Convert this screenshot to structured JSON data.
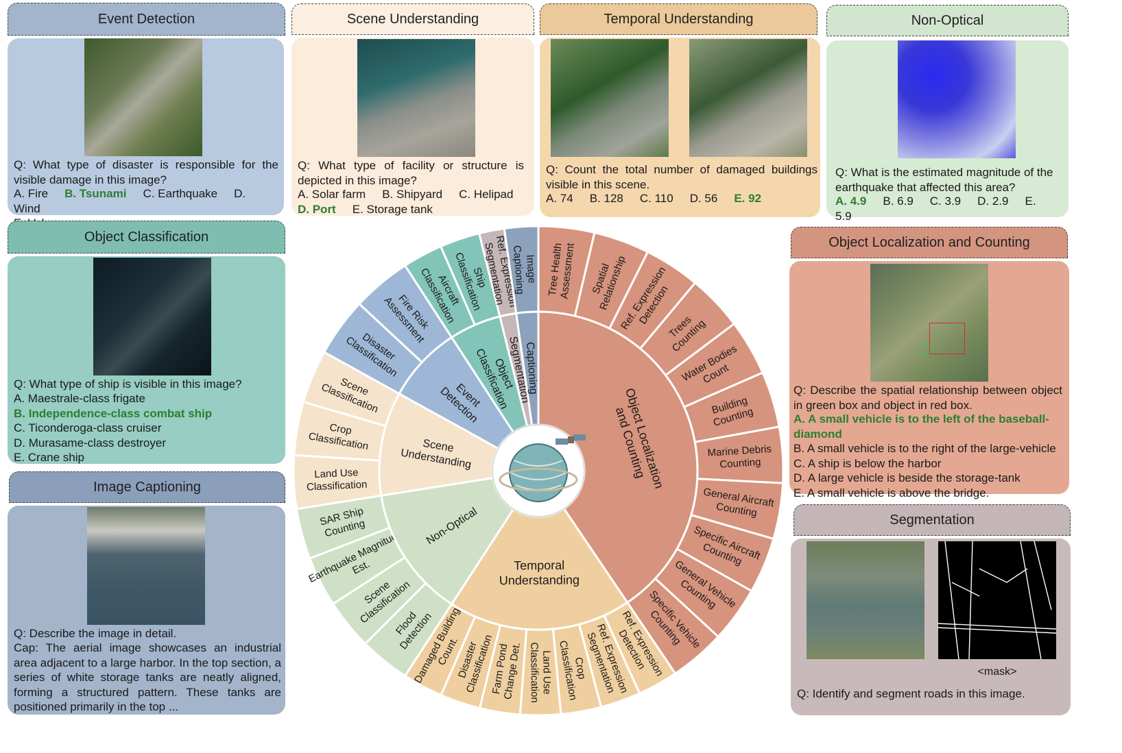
{
  "panels": {
    "event_detection": {
      "title": "Event Detection",
      "question": "Q: What type of disaster is responsible for the visible damage in this image?",
      "options": [
        "A. Fire",
        "B. Tsunami",
        "C. Earthquake",
        "D. Wind",
        "E. Volcano"
      ],
      "answer_index": 1
    },
    "scene_understanding": {
      "title": "Scene Understanding",
      "question": "Q: What type of facility or structure is depicted in this image?",
      "options": [
        "A. Solar farm",
        "B. Shipyard",
        "C. Helipad",
        "D. Port",
        "E. Storage tank"
      ],
      "answer_index": 3
    },
    "temporal_understanding": {
      "title": "Temporal Understanding",
      "question": "Q: Count the total number of damaged buildings visible in this scene.",
      "options": [
        "A. 74",
        "B. 128",
        "C. 110",
        "D. 56",
        "E. 92"
      ],
      "answer_index": 4
    },
    "non_optical": {
      "title": "Non-Optical",
      "question": "Q: What is the estimated magnitude of the earthquake that affected this area?",
      "options": [
        "A. 4.9",
        "B. 6.9",
        "C. 3.9",
        "D. 2.9",
        "E. 5.9"
      ],
      "answer_index": 0
    },
    "object_classification": {
      "title": "Object Classification",
      "question": "Q: What type of ship is visible in this image?",
      "options": [
        "A. Maestrale-class frigate",
        "B. Independence-class combat ship",
        "C. Ticonderoga-class cruiser",
        "D. Murasame-class destroyer",
        "E. Crane ship"
      ],
      "answer_index": 1
    },
    "image_captioning": {
      "title": "Image Captioning",
      "question": "Q: Describe the image in detail.",
      "caption": "Cap: The aerial image showcases an industrial area adjacent to a large harbor. In the top section, a series of white storage tanks are neatly aligned, forming a structured pattern. These tanks are positioned primarily in the top ..."
    },
    "object_localization": {
      "title": "Object Localization and Counting",
      "question": "Q: Describe the spatial relationship between object in green box and object in red box.",
      "options": [
        "A. A small vehicle is to the left of the baseball-diamond",
        "B. A small vehicle is to the right of the large-vehicle",
        "C. A ship is below the harbor",
        "D. A large vehicle is beside the storage-tank",
        "E. A small vehicle is above the bridge."
      ],
      "answer_index": 0
    },
    "segmentation": {
      "title": "Segmentation",
      "mask_label": "<mask>",
      "question": "Q: Identify and segment roads in this image."
    }
  },
  "wheel": {
    "colors": {
      "olc": "#d6937d",
      "tu": "#efcf9f",
      "no": "#cfe0c6",
      "su": "#f6e3cc",
      "ed": "#9eb7d6",
      "oc": "#83c4b8",
      "seg": "#c5b7b7",
      "cap": "#8ba1bc"
    },
    "inner": [
      {
        "label": "Object Localization and Counting",
        "color": "olc"
      },
      {
        "label": "Temporal Understanding",
        "color": "tu"
      },
      {
        "label": "Non-Optical",
        "color": "no"
      },
      {
        "label": "Scene Understanding",
        "color": "su"
      },
      {
        "label": "Event Detection",
        "color": "ed"
      },
      {
        "label": "Object Classification",
        "color": "oc"
      },
      {
        "label": "Segmentation",
        "color": "seg"
      },
      {
        "label": "Captioning",
        "color": "cap"
      }
    ],
    "outer": [
      {
        "label": "Tree Health Assessment",
        "color": "olc"
      },
      {
        "label": "Spatial Relationship",
        "color": "olc"
      },
      {
        "label": "Ref. Expression Detection",
        "color": "olc"
      },
      {
        "label": "Trees Counting",
        "color": "olc"
      },
      {
        "label": "Water Bodies Count",
        "color": "olc"
      },
      {
        "label": "Building Counting",
        "color": "olc"
      },
      {
        "label": "Marine Debris Counting",
        "color": "olc"
      },
      {
        "label": "General Aircraft Counting",
        "color": "olc"
      },
      {
        "label": "Specific Aircraft Counting",
        "color": "olc"
      },
      {
        "label": "General Vehicle Counting",
        "color": "olc"
      },
      {
        "label": "Specific Vehicle Counting",
        "color": "olc"
      },
      {
        "label": "Ref. Expression Detection",
        "color": "tu"
      },
      {
        "label": "Ref. Expression Segmentation",
        "color": "tu"
      },
      {
        "label": "Crop Classification",
        "color": "tu"
      },
      {
        "label": "Land Use Classification",
        "color": "tu"
      },
      {
        "label": "Farm Pond Change Det.",
        "color": "tu"
      },
      {
        "label": "Disaster Classification",
        "color": "tu"
      },
      {
        "label": "Damaged Building Count.",
        "color": "tu"
      },
      {
        "label": "Flood Detection",
        "color": "no"
      },
      {
        "label": "Scene Classification",
        "color": "no"
      },
      {
        "label": "Earthquake Magnitude Est.",
        "color": "no"
      },
      {
        "label": "SAR Ship Counting",
        "color": "no"
      },
      {
        "label": "Land Use Classification",
        "color": "su"
      },
      {
        "label": "Crop Classification",
        "color": "su"
      },
      {
        "label": "Scene Classification",
        "color": "su"
      },
      {
        "label": "Disaster Classification",
        "color": "ed"
      },
      {
        "label": "Fire Risk Assessment",
        "color": "ed"
      },
      {
        "label": "Aircraft Classification",
        "color": "oc"
      },
      {
        "label": "Ship Classification",
        "color": "oc"
      },
      {
        "label": "Ref. Expression Segmentation",
        "color": "seg"
      },
      {
        "label": "Image Captioning",
        "color": "cap"
      }
    ]
  }
}
